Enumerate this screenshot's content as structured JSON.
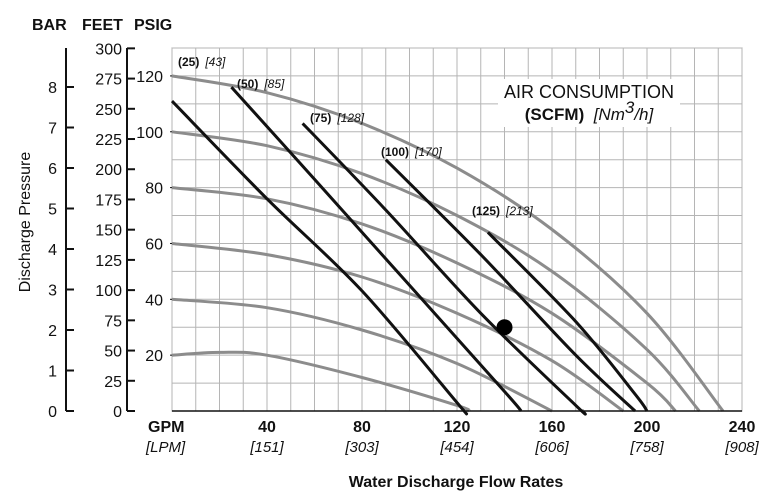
{
  "chart_data": {
    "type": "line",
    "title_lines": {
      "line1": "AIR CONSUMPTION",
      "line2_bold": "(SCFM)",
      "line2_italic": "[Nm",
      "line2_sup": "3",
      "line2_italic_end": "/h]"
    },
    "ylabel": "Discharge Pressure",
    "xlabel": "Water Discharge Flow Rates",
    "axis_headers": {
      "bar": "BAR",
      "feet": "FEET",
      "psig": "PSIG"
    },
    "x_unit_labels": {
      "gpm": "GPM",
      "lpm": "[LPM]"
    },
    "xlim": [
      0,
      240
    ],
    "ylim_psig": [
      0,
      130
    ],
    "x_ticks": [
      {
        "gpm": "40",
        "lpm": "[151]"
      },
      {
        "gpm": "80",
        "lpm": "[303]"
      },
      {
        "gpm": "120",
        "lpm": "[454]"
      },
      {
        "gpm": "160",
        "lpm": "[606]"
      },
      {
        "gpm": "200",
        "lpm": "[758]"
      },
      {
        "gpm": "240",
        "lpm": "[908]"
      }
    ],
    "x_tick_values": [
      40,
      80,
      120,
      160,
      200,
      240
    ],
    "psig_ticks": [
      "20",
      "40",
      "60",
      "80",
      "100",
      "120"
    ],
    "psig_tick_values": [
      20,
      40,
      60,
      80,
      100,
      120
    ],
    "feet_ticks": [
      "0",
      "25",
      "50",
      "75",
      "100",
      "125",
      "150",
      "175",
      "200",
      "225",
      "250",
      "275",
      "300"
    ],
    "feet_tick_values": [
      0,
      25,
      50,
      75,
      100,
      125,
      150,
      175,
      200,
      225,
      250,
      275,
      300
    ],
    "bar_ticks": [
      "0",
      "1",
      "2",
      "3",
      "4",
      "5",
      "6",
      "7",
      "8"
    ],
    "bar_tick_values": [
      0,
      1,
      2,
      3,
      4,
      5,
      6,
      7,
      8
    ],
    "grid": true,
    "inlet_pressure_curves": [
      {
        "inlet_psig": 120,
        "points": [
          [
            0,
            120
          ],
          [
            40,
            114
          ],
          [
            80,
            103
          ],
          [
            120,
            87
          ],
          [
            160,
            65
          ],
          [
            200,
            35
          ],
          [
            232,
            0
          ]
        ]
      },
      {
        "inlet_psig": 100,
        "points": [
          [
            0,
            100
          ],
          [
            40,
            95
          ],
          [
            80,
            85
          ],
          [
            120,
            70
          ],
          [
            160,
            50
          ],
          [
            200,
            22
          ],
          [
            222,
            0
          ]
        ]
      },
      {
        "inlet_psig": 80,
        "points": [
          [
            0,
            80
          ],
          [
            40,
            76
          ],
          [
            80,
            67
          ],
          [
            120,
            53
          ],
          [
            160,
            35
          ],
          [
            200,
            10
          ],
          [
            212,
            0
          ]
        ]
      },
      {
        "inlet_psig": 60,
        "points": [
          [
            0,
            60
          ],
          [
            40,
            56
          ],
          [
            80,
            48
          ],
          [
            120,
            35
          ],
          [
            160,
            18
          ],
          [
            190,
            0
          ]
        ]
      },
      {
        "inlet_psig": 40,
        "points": [
          [
            0,
            40
          ],
          [
            40,
            37
          ],
          [
            80,
            29
          ],
          [
            120,
            17
          ],
          [
            160,
            0
          ]
        ]
      },
      {
        "inlet_psig": 20,
        "points": [
          [
            0,
            20
          ],
          [
            20,
            21
          ],
          [
            40,
            20
          ],
          [
            80,
            12
          ],
          [
            120,
            2
          ],
          [
            125,
            0
          ]
        ]
      }
    ],
    "air_consumption_curves": [
      {
        "scfm": "(25)",
        "nm3h": "[43]",
        "points": [
          [
            0,
            111
          ],
          [
            40,
            76
          ],
          [
            80,
            43
          ],
          [
            120,
            3
          ],
          [
            123,
            0
          ]
        ]
      },
      {
        "scfm": "(50)",
        "nm3h": "[85]",
        "points": [
          [
            25,
            116
          ],
          [
            60,
            83
          ],
          [
            100,
            45
          ],
          [
            140,
            7
          ],
          [
            147,
            0
          ]
        ]
      },
      {
        "scfm": "(75)",
        "nm3h": "[128]",
        "points": [
          [
            55,
            103
          ],
          [
            90,
            72
          ],
          [
            130,
            35
          ],
          [
            170,
            2
          ],
          [
            173,
            0
          ]
        ]
      },
      {
        "scfm": "(100)",
        "nm3h": "[170]",
        "points": [
          [
            90,
            90
          ],
          [
            130,
            56
          ],
          [
            170,
            20
          ],
          [
            195,
            0
          ]
        ]
      },
      {
        "scfm": "(125)",
        "nm3h": "[213]",
        "points": [
          [
            133,
            64
          ],
          [
            170,
            32
          ],
          [
            195,
            6
          ],
          [
            200,
            0
          ]
        ]
      }
    ],
    "operating_point": {
      "x": 140,
      "y": 30
    }
  }
}
